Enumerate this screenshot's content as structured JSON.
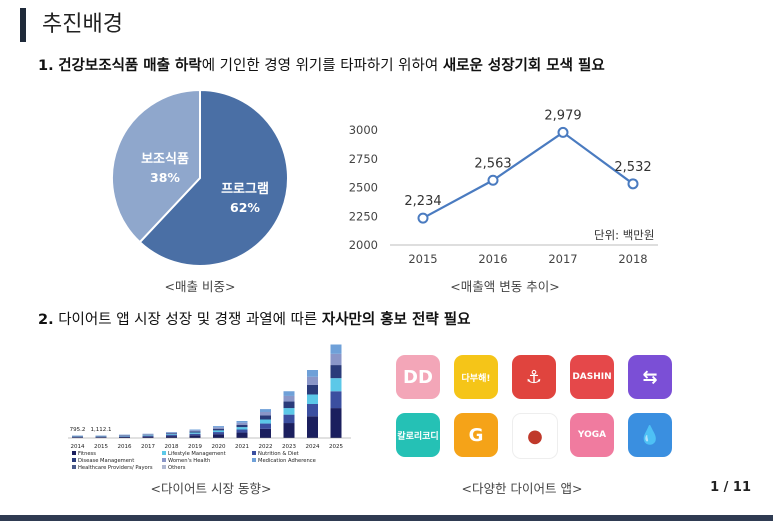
{
  "title": "추진배경",
  "section1": {
    "num": "1.",
    "bold_a": "건강보조식품 매출 하락",
    "normal": "에 기인한 경영 위기를 타파하기 위하여 ",
    "bold_b": "새로운 성장기회 모색 필요"
  },
  "pie": {
    "caption": "<매출 비중>",
    "slices": [
      {
        "label": "프로그램",
        "pct_text": "62%",
        "value": 62,
        "color": "#4a6fa5"
      },
      {
        "label": "보조식품",
        "pct_text": "38%",
        "value": 38,
        "color": "#8fa7cc"
      }
    ]
  },
  "line": {
    "caption": "<매출액 변동 추이>",
    "unit": "단위: 백만원"
  },
  "chart_data": [
    {
      "type": "pie",
      "title": "",
      "categories": [
        "프로그램",
        "보조식품"
      ],
      "values": [
        62,
        38
      ]
    },
    {
      "type": "line",
      "title": "",
      "categories": [
        "2015",
        "2016",
        "2017",
        "2018"
      ],
      "values": [
        2234,
        2563,
        2979,
        2532
      ],
      "value_labels": [
        "2,234",
        "2,563",
        "2,979",
        "2,532"
      ],
      "ylim": [
        2000,
        3000
      ],
      "yticks": [
        "2000",
        "2250",
        "2500",
        "2750",
        "3000"
      ],
      "color": "#4a7bc0",
      "grid": false
    }
  ],
  "section2": {
    "num": "2.",
    "normal": "다이어트 앱 시장 성장 및 경쟁 과열에 따른 ",
    "bold": "자사만의 홍보 전략 필요"
  },
  "market": {
    "caption": "<다이어트 시장 동향>",
    "years": [
      "2014",
      "2015",
      "2016",
      "2017",
      "2018",
      "2019",
      "2020",
      "2021",
      "2022",
      "2023",
      "2024",
      "2025"
    ],
    "labels": [
      "795.2",
      "1,112.1"
    ],
    "legend": [
      "Fitness",
      "Lifestyle Management",
      "Nutrition & Diet",
      "Disease Management",
      "Women's Health",
      "Medication Adherence",
      "Healthcare Providers/ Payors",
      "Others"
    ]
  },
  "apps": {
    "caption": "<다양한 다이어트 앱>",
    "items": [
      {
        "name": "dd-app",
        "text": "DD",
        "bg": "#f3a6b8"
      },
      {
        "name": "dabuhae-app",
        "text": "다부해!",
        "bg": "#f5c518"
      },
      {
        "name": "anchor-app",
        "text": "⚓",
        "bg": "#e0443e"
      },
      {
        "name": "dashin-app",
        "text": "DASHIN",
        "bg": "#e5484a"
      },
      {
        "name": "body-app",
        "text": "⇆",
        "bg": "#7b4fd6"
      },
      {
        "name": "ruler-app",
        "text": "칼로리코디",
        "bg": "#25c1b5"
      },
      {
        "name": "g-app",
        "text": "G",
        "bg": "#f5a318"
      },
      {
        "name": "shoe-app",
        "text": "●",
        "bg": "#ffffff"
      },
      {
        "name": "yoga-app",
        "text": "YOGA",
        "bg": "#f07b9f"
      },
      {
        "name": "water-app",
        "text": "💧",
        "bg": "#3a8fe0"
      }
    ]
  },
  "page": "1 / 11"
}
